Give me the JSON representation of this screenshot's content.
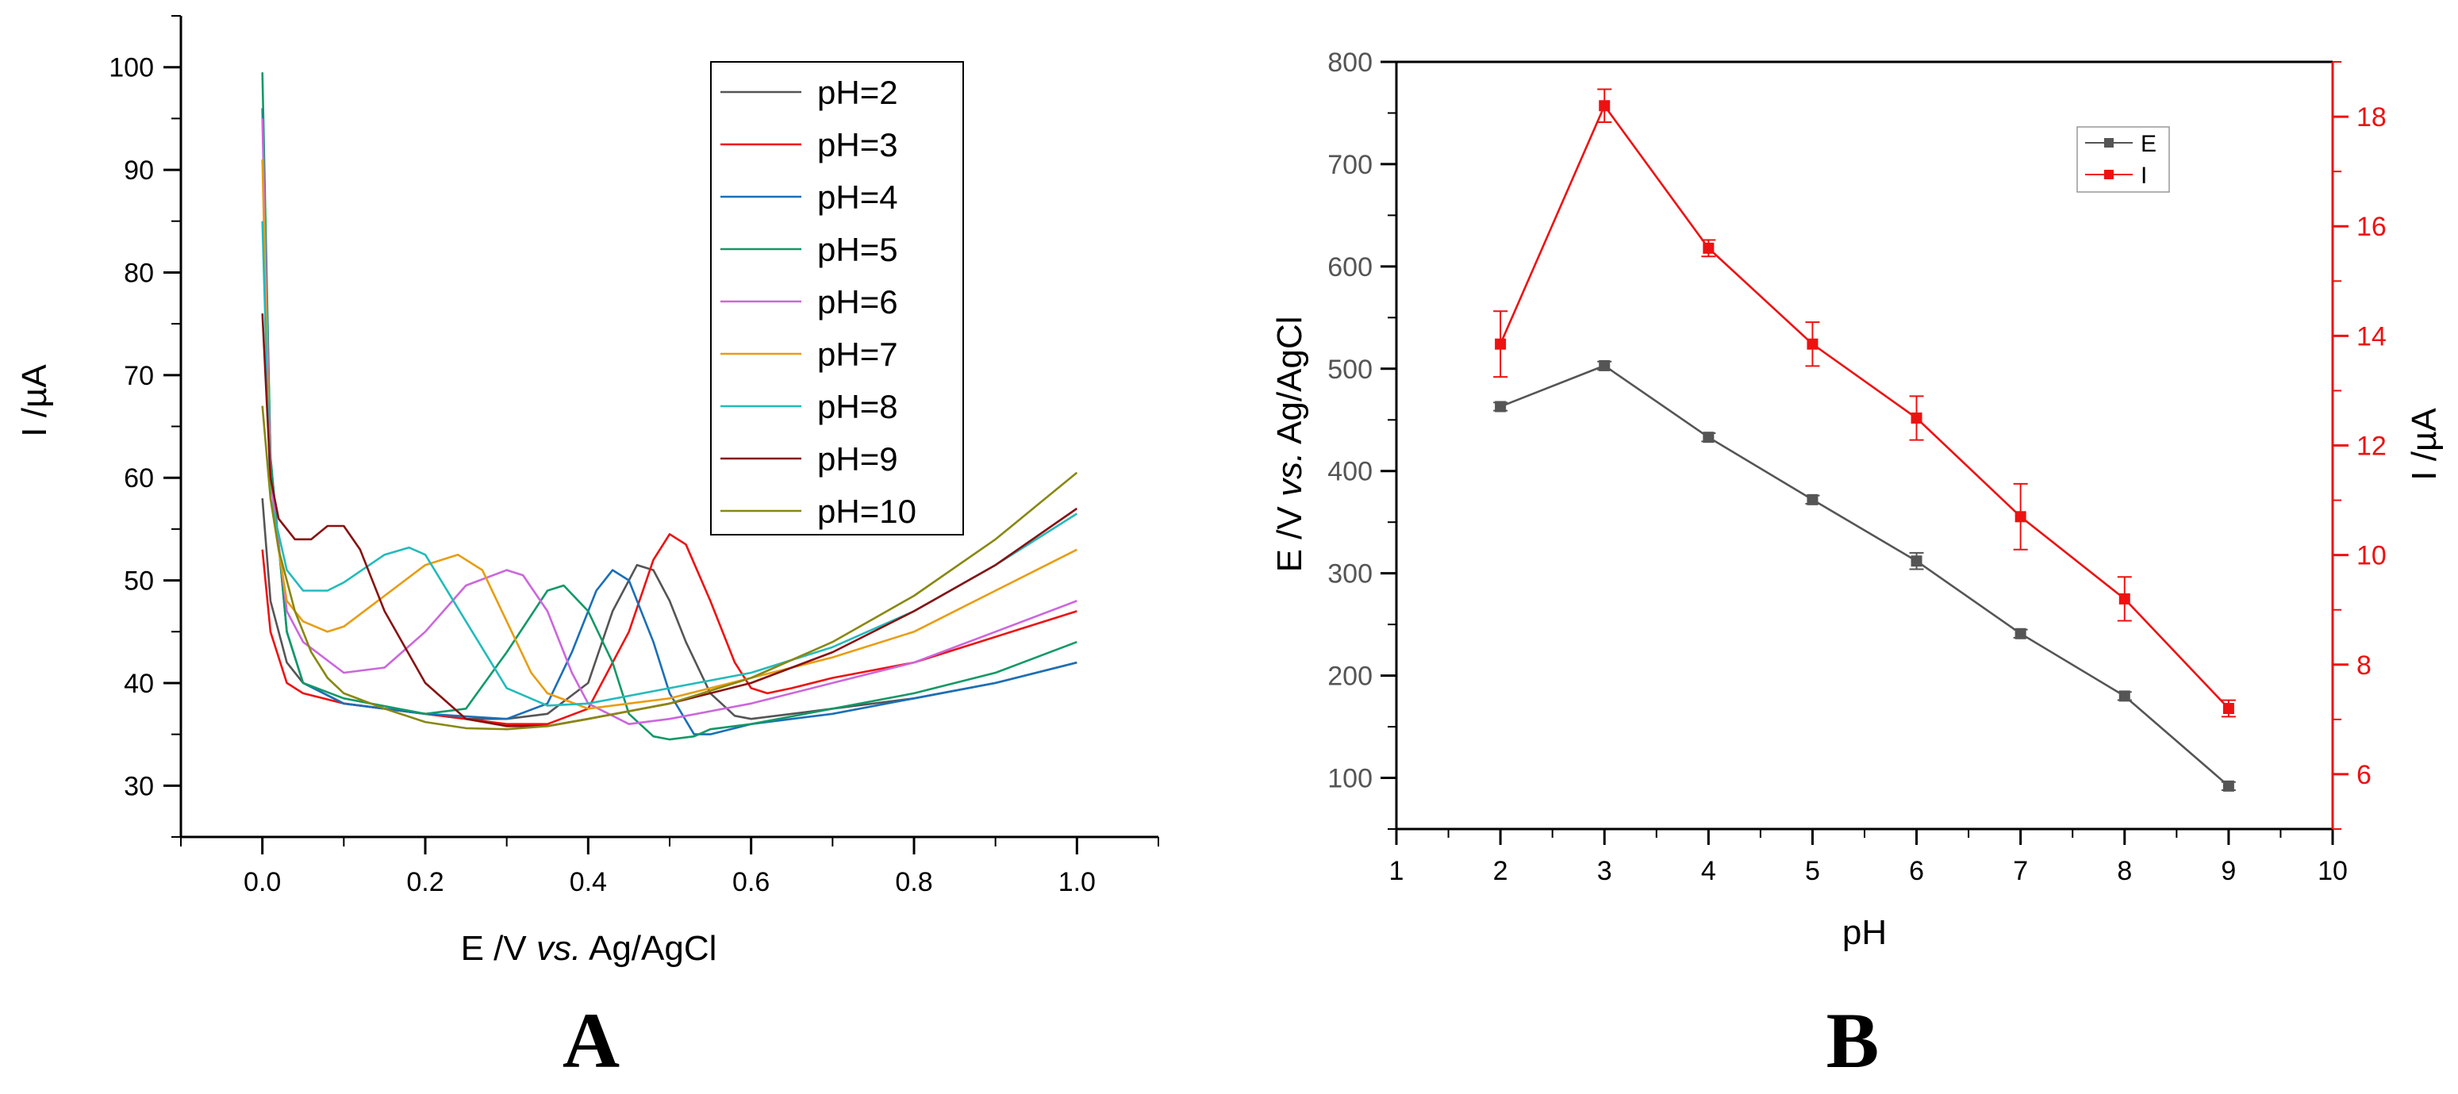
{
  "chart_data": [
    {
      "type": "line",
      "panel": "A",
      "xlabel_main": "E /V ",
      "xlabel_italic": "vs.",
      "xlabel_tail": " Ag/AgCl",
      "ylabel": "I /µA",
      "xlim": [
        -0.1,
        1.1
      ],
      "ylim": [
        25,
        105
      ],
      "xticks": [
        0.0,
        0.2,
        0.4,
        0.6,
        0.8,
        1.0
      ],
      "xtick_labels": [
        "0.0",
        "0.2",
        "0.4",
        "0.6",
        "0.8",
        "1.0"
      ],
      "yticks": [
        30,
        40,
        50,
        60,
        70,
        80,
        90,
        100
      ],
      "ytick_labels": [
        "30",
        "40",
        "50",
        "60",
        "70",
        "80",
        "90",
        "100"
      ],
      "legend_position": "top-right",
      "series": [
        {
          "name": "pH=2",
          "color": "#555555",
          "x": [
            0.0,
            0.01,
            0.03,
            0.05,
            0.1,
            0.15,
            0.2,
            0.25,
            0.3,
            0.35,
            0.4,
            0.43,
            0.46,
            0.48,
            0.5,
            0.52,
            0.55,
            0.58,
            0.6,
            0.65,
            0.7,
            0.8,
            0.9,
            1.0
          ],
          "y": [
            58,
            48,
            42,
            40,
            38,
            37.5,
            37,
            36.5,
            36.5,
            37,
            40,
            47,
            51.5,
            51,
            48,
            44,
            39,
            36.8,
            36.5,
            37,
            37.5,
            38.5,
            40,
            42
          ]
        },
        {
          "name": "pH=3",
          "color": "#ee1111",
          "x": [
            0.0,
            0.01,
            0.03,
            0.05,
            0.1,
            0.2,
            0.3,
            0.35,
            0.4,
            0.45,
            0.48,
            0.5,
            0.52,
            0.55,
            0.58,
            0.6,
            0.62,
            0.65,
            0.7,
            0.8,
            0.9,
            1.0
          ],
          "y": [
            53,
            45,
            40,
            39,
            38,
            37,
            36,
            36,
            37.5,
            45,
            52,
            54.5,
            53.5,
            48,
            42,
            39.5,
            39,
            39.5,
            40.5,
            42,
            44.5,
            47
          ]
        },
        {
          "name": "pH=4",
          "color": "#1a6fb8",
          "x": [
            0.0,
            0.01,
            0.03,
            0.05,
            0.1,
            0.2,
            0.3,
            0.35,
            0.38,
            0.41,
            0.43,
            0.45,
            0.48,
            0.5,
            0.53,
            0.55,
            0.6,
            0.7,
            0.8,
            0.9,
            1.0
          ],
          "y": [
            96,
            62,
            45,
            40,
            38,
            37,
            36.5,
            38,
            43,
            49,
            51,
            50,
            44,
            39,
            35,
            35,
            36,
            37,
            38.5,
            40,
            42
          ]
        },
        {
          "name": "pH=5",
          "color": "#119966",
          "x": [
            0.0,
            0.01,
            0.03,
            0.05,
            0.1,
            0.2,
            0.25,
            0.3,
            0.35,
            0.37,
            0.4,
            0.43,
            0.45,
            0.48,
            0.5,
            0.53,
            0.55,
            0.6,
            0.7,
            0.8,
            0.9,
            1.0
          ],
          "y": [
            99.5,
            62,
            45,
            40,
            38.5,
            37,
            37.5,
            43,
            49,
            49.5,
            47,
            42,
            37,
            34.8,
            34.5,
            34.8,
            35.5,
            36,
            37.5,
            39,
            41,
            44
          ]
        },
        {
          "name": "pH=6",
          "color": "#cc66dd",
          "x": [
            0.0,
            0.01,
            0.03,
            0.05,
            0.1,
            0.15,
            0.2,
            0.25,
            0.3,
            0.32,
            0.35,
            0.38,
            0.4,
            0.45,
            0.5,
            0.6,
            0.7,
            0.8,
            0.9,
            1.0
          ],
          "y": [
            95,
            60,
            47,
            44,
            41,
            41.5,
            45,
            49.5,
            51,
            50.5,
            47,
            41,
            38,
            36,
            36.5,
            38,
            40,
            42,
            45,
            48
          ]
        },
        {
          "name": "pH=7",
          "color": "#e89d10",
          "x": [
            0.0,
            0.01,
            0.03,
            0.05,
            0.08,
            0.1,
            0.15,
            0.2,
            0.24,
            0.27,
            0.3,
            0.33,
            0.35,
            0.4,
            0.5,
            0.6,
            0.7,
            0.8,
            0.9,
            1.0
          ],
          "y": [
            91,
            58,
            48,
            46,
            45,
            45.5,
            48.5,
            51.5,
            52.5,
            51,
            46,
            41,
            39,
            37.5,
            38.5,
            40.5,
            42.5,
            45,
            49,
            53
          ]
        },
        {
          "name": "pH=8",
          "color": "#22bbbb",
          "x": [
            0.0,
            0.01,
            0.03,
            0.05,
            0.08,
            0.1,
            0.15,
            0.18,
            0.2,
            0.25,
            0.3,
            0.35,
            0.4,
            0.5,
            0.6,
            0.7,
            0.8,
            0.9,
            1.0
          ],
          "y": [
            85,
            58,
            51,
            49,
            49,
            49.8,
            52.5,
            53.2,
            52.5,
            46,
            39.5,
            37.8,
            38,
            39.5,
            41,
            43.5,
            47,
            51.5,
            56.5
          ]
        },
        {
          "name": "pH=9",
          "color": "#881111",
          "x": [
            0.0,
            0.01,
            0.02,
            0.04,
            0.06,
            0.08,
            0.1,
            0.12,
            0.15,
            0.2,
            0.25,
            0.3,
            0.35,
            0.4,
            0.5,
            0.6,
            0.7,
            0.8,
            0.9,
            1.0
          ],
          "y": [
            76,
            60,
            56,
            54,
            54,
            55.3,
            55.3,
            53,
            47,
            40,
            36.5,
            35.8,
            35.8,
            36.5,
            38,
            40,
            43,
            47,
            51.5,
            57
          ]
        },
        {
          "name": "pH=10",
          "color": "#888811",
          "x": [
            0.0,
            0.01,
            0.02,
            0.04,
            0.06,
            0.08,
            0.1,
            0.15,
            0.2,
            0.25,
            0.3,
            0.35,
            0.4,
            0.5,
            0.6,
            0.7,
            0.8,
            0.9,
            1.0
          ],
          "y": [
            67,
            58,
            53,
            47,
            43,
            40.5,
            39,
            37.5,
            36.2,
            35.6,
            35.5,
            35.8,
            36.5,
            38,
            40.5,
            44,
            48.5,
            54,
            60.5
          ]
        }
      ]
    },
    {
      "type": "line",
      "panel": "B",
      "xlabel": "pH",
      "ylabel_left_main": "E /V ",
      "ylabel_left_italic": "vs.",
      "ylabel_left_tail": " Ag/AgCl",
      "ylabel_right": "I /µA",
      "xlim": [
        1,
        10
      ],
      "ylim_left": [
        50,
        800
      ],
      "ylim_right": [
        5,
        19
      ],
      "xticks": [
        1,
        2,
        3,
        4,
        5,
        6,
        7,
        8,
        9,
        10
      ],
      "xtick_labels": [
        "1",
        "2",
        "3",
        "4",
        "5",
        "6",
        "7",
        "8",
        "9",
        "10"
      ],
      "yticks_left": [
        100,
        200,
        300,
        400,
        500,
        600,
        700,
        800
      ],
      "ytick_labels_left": [
        "100",
        "200",
        "300",
        "400",
        "500",
        "600",
        "700",
        "800"
      ],
      "yticks_right": [
        6,
        8,
        10,
        12,
        14,
        16,
        18
      ],
      "ytick_labels_right": [
        "6",
        "8",
        "10",
        "12",
        "14",
        "16",
        "18"
      ],
      "legend_position": "top-right",
      "series": [
        {
          "name": "E",
          "axis": "left",
          "color": "#555555",
          "x": [
            2,
            3,
            4,
            5,
            6,
            7,
            8,
            9
          ],
          "y": [
            463,
            503,
            433,
            372,
            312,
            241,
            180,
            92
          ],
          "err": [
            4,
            4,
            4,
            4,
            8,
            4,
            4,
            4
          ]
        },
        {
          "name": "I",
          "axis": "right",
          "color": "#ee1111",
          "x": [
            2,
            3,
            4,
            5,
            6,
            7,
            8,
            9
          ],
          "y": [
            13.85,
            18.2,
            15.6,
            13.85,
            12.5,
            10.7,
            9.2,
            7.2
          ],
          "err": [
            0.6,
            0.3,
            0.15,
            0.4,
            0.4,
            0.6,
            0.4,
            0.15
          ]
        }
      ]
    }
  ]
}
